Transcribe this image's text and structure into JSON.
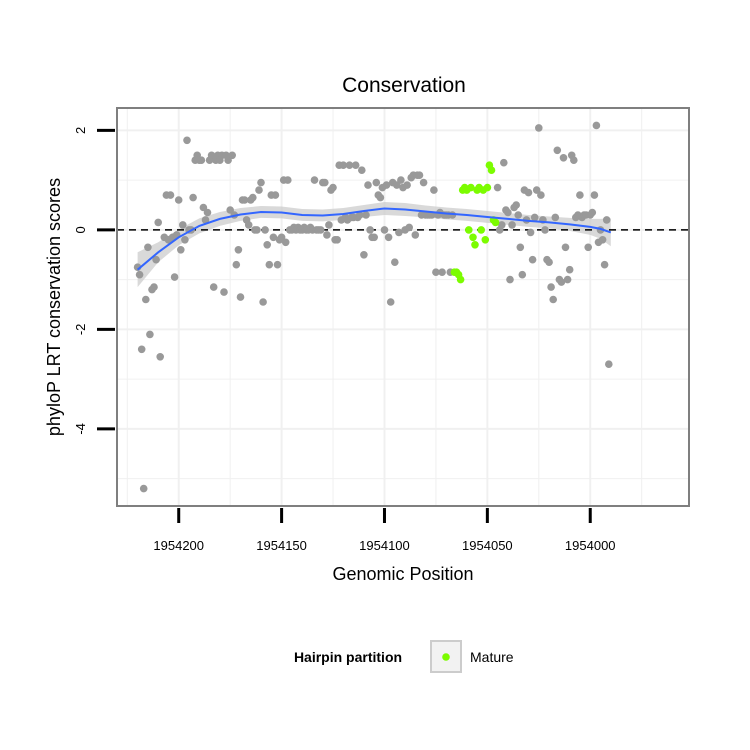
{
  "chart_data": {
    "type": "scatter",
    "title": "Conservation",
    "xlabel": "Genomic Position",
    "ylabel": "phyloP LRT conservation scores",
    "x_reversed": true,
    "xlim": [
      1954230,
      1953952
    ],
    "ylim": [
      -5.55,
      2.45
    ],
    "x_ticks": [
      1954200,
      1954150,
      1954100,
      1954050,
      1954000
    ],
    "x_tick_labels": [
      "1954200",
      "1954150",
      "1954100",
      "1954050",
      "1954000"
    ],
    "y_ticks": [
      2,
      0,
      -2,
      -4
    ],
    "y_tick_labels": [
      "2",
      "0",
      "-2",
      "-4"
    ],
    "reference_line": {
      "y": 0,
      "style": "dashed"
    },
    "grid": true,
    "legend": {
      "title": "Hairpin partition",
      "position": "bottom",
      "entries": [
        {
          "label": "Mature",
          "color": "#7cfc00"
        }
      ]
    },
    "colors": {
      "other": "#999999",
      "mature": "#7cfc00",
      "smooth": "#3366ff",
      "ribbon": "#cccccc",
      "panel_border": "#7f7f7f",
      "grid": "#f0f0f0"
    },
    "series": [
      {
        "group": "other",
        "points": [
          [
            1954220,
            -0.75
          ],
          [
            1954219,
            -0.9
          ],
          [
            1954218,
            -2.4
          ],
          [
            1954217,
            -5.2
          ],
          [
            1954216,
            -1.4
          ],
          [
            1954215,
            -0.35
          ],
          [
            1954214,
            -2.1
          ],
          [
            1954213,
            -1.2
          ],
          [
            1954212,
            -1.15
          ],
          [
            1954211,
            -0.6
          ],
          [
            1954210,
            0.15
          ],
          [
            1954209,
            -2.55
          ],
          [
            1954207,
            -0.15
          ],
          [
            1954206,
            0.7
          ],
          [
            1954205,
            -0.2
          ],
          [
            1954204,
            0.7
          ],
          [
            1954203,
            -0.15
          ],
          [
            1954202,
            -0.95
          ],
          [
            1954201,
            -0.1
          ],
          [
            1954200,
            0.6
          ],
          [
            1954199,
            -0.4
          ],
          [
            1954198,
            0.1
          ],
          [
            1954197,
            -0.2
          ],
          [
            1954196,
            1.8
          ],
          [
            1954195,
            0.0
          ],
          [
            1954194,
            0.0
          ],
          [
            1954193,
            0.65
          ],
          [
            1954192,
            1.4
          ],
          [
            1954191,
            1.5
          ],
          [
            1954190,
            1.4
          ],
          [
            1954189,
            1.4
          ],
          [
            1954188,
            0.45
          ],
          [
            1954187,
            0.2
          ],
          [
            1954186,
            0.35
          ],
          [
            1954185,
            1.4
          ],
          [
            1954184,
            1.5
          ],
          [
            1954183,
            -1.15
          ],
          [
            1954182,
            1.4
          ],
          [
            1954181,
            1.5
          ],
          [
            1954180,
            1.4
          ],
          [
            1954179,
            1.5
          ],
          [
            1954178,
            -1.25
          ],
          [
            1954177,
            1.5
          ],
          [
            1954176,
            1.4
          ],
          [
            1954175,
            0.4
          ],
          [
            1954174,
            1.5
          ],
          [
            1954173,
            0.3
          ],
          [
            1954172,
            -0.7
          ],
          [
            1954171,
            -0.4
          ],
          [
            1954170,
            -1.35
          ],
          [
            1954169,
            0.6
          ],
          [
            1954168,
            0.6
          ],
          [
            1954167,
            0.2
          ],
          [
            1954166,
            0.1
          ],
          [
            1954165,
            0.6
          ],
          [
            1954164,
            0.65
          ],
          [
            1954163,
            0.0
          ],
          [
            1954162,
            0.0
          ],
          [
            1954161,
            0.8
          ],
          [
            1954160,
            0.95
          ],
          [
            1954159,
            -1.45
          ],
          [
            1954158,
            0.0
          ],
          [
            1954157,
            -0.3
          ],
          [
            1954156,
            -0.7
          ],
          [
            1954155,
            0.7
          ],
          [
            1954154,
            -0.15
          ],
          [
            1954153,
            0.7
          ],
          [
            1954152,
            -0.7
          ],
          [
            1954151,
            -0.2
          ],
          [
            1954150,
            -0.15
          ],
          [
            1954149,
            1.0
          ],
          [
            1954148,
            -0.25
          ],
          [
            1954147,
            1.0
          ],
          [
            1954146,
            0.0
          ],
          [
            1954145,
            0.0
          ],
          [
            1954144,
            0.05
          ],
          [
            1954143,
            0.0
          ],
          [
            1954142,
            0.05
          ],
          [
            1954141,
            0.0
          ],
          [
            1954140,
            0.0
          ],
          [
            1954139,
            0.05
          ],
          [
            1954138,
            0.0
          ],
          [
            1954137,
            0.0
          ],
          [
            1954136,
            0.05
          ],
          [
            1954135,
            0.0
          ],
          [
            1954134,
            1.0
          ],
          [
            1954133,
            0.0
          ],
          [
            1954132,
            0.0
          ],
          [
            1954131,
            0.0
          ],
          [
            1954130,
            0.95
          ],
          [
            1954129,
            0.95
          ],
          [
            1954128,
            -0.1
          ],
          [
            1954127,
            0.1
          ],
          [
            1954126,
            0.8
          ],
          [
            1954125,
            0.85
          ],
          [
            1954124,
            -0.2
          ],
          [
            1954123,
            -0.2
          ],
          [
            1954122,
            1.3
          ],
          [
            1954121,
            0.2
          ],
          [
            1954120,
            1.3
          ],
          [
            1954119,
            0.25
          ],
          [
            1954118,
            0.2
          ],
          [
            1954117,
            1.3
          ],
          [
            1954116,
            0.25
          ],
          [
            1954115,
            0.25
          ],
          [
            1954114,
            1.3
          ],
          [
            1954113,
            0.25
          ],
          [
            1954112,
            0.3
          ],
          [
            1954111,
            1.2
          ],
          [
            1954110,
            -0.5
          ],
          [
            1954109,
            0.3
          ],
          [
            1954108,
            0.9
          ],
          [
            1954107,
            0.0
          ],
          [
            1954106,
            -0.15
          ],
          [
            1954105,
            -0.15
          ],
          [
            1954104,
            0.95
          ],
          [
            1954103,
            0.7
          ],
          [
            1954102,
            0.65
          ],
          [
            1954101,
            0.85
          ],
          [
            1954100,
            0.0
          ],
          [
            1954099,
            0.9
          ],
          [
            1954098,
            -0.15
          ],
          [
            1954097,
            -1.45
          ],
          [
            1954096,
            0.95
          ],
          [
            1954095,
            -0.65
          ],
          [
            1954094,
            0.9
          ],
          [
            1954093,
            -0.05
          ],
          [
            1954092,
            1.0
          ],
          [
            1954091,
            0.85
          ],
          [
            1954090,
            0.0
          ],
          [
            1954089,
            0.9
          ],
          [
            1954088,
            0.05
          ],
          [
            1954087,
            1.05
          ],
          [
            1954086,
            1.1
          ],
          [
            1954085,
            -0.1
          ],
          [
            1954084,
            1.1
          ],
          [
            1954083,
            1.1
          ],
          [
            1954082,
            0.3
          ],
          [
            1954081,
            0.95
          ],
          [
            1954080,
            0.3
          ],
          [
            1954079,
            0.3
          ],
          [
            1954078,
            0.3
          ],
          [
            1954077,
            0.3
          ],
          [
            1954076,
            0.8
          ],
          [
            1954075,
            -0.85
          ],
          [
            1954074,
            0.3
          ],
          [
            1954073,
            0.35
          ],
          [
            1954072,
            -0.85
          ],
          [
            1954071,
            0.3
          ],
          [
            1954070,
            0.3
          ],
          [
            1954069,
            0.3
          ],
          [
            1954068,
            -0.85
          ],
          [
            1954067,
            0.3
          ],
          [
            1954045,
            0.85
          ],
          [
            1954044,
            0.0
          ],
          [
            1954043,
            0.1
          ],
          [
            1954042,
            1.35
          ],
          [
            1954041,
            0.4
          ],
          [
            1954040,
            0.35
          ],
          [
            1954039,
            -1.0
          ],
          [
            1954038,
            0.1
          ],
          [
            1954037,
            0.45
          ],
          [
            1954036,
            0.5
          ],
          [
            1954035,
            0.3
          ],
          [
            1954034,
            -0.35
          ],
          [
            1954033,
            -0.9
          ],
          [
            1954032,
            0.8
          ],
          [
            1954031,
            0.2
          ],
          [
            1954030,
            0.75
          ],
          [
            1954029,
            -0.05
          ],
          [
            1954028,
            -0.6
          ],
          [
            1954027,
            0.25
          ],
          [
            1954026,
            0.8
          ],
          [
            1954025,
            2.05
          ],
          [
            1954024,
            0.7
          ],
          [
            1954023,
            0.2
          ],
          [
            1954022,
            0.0
          ],
          [
            1954021,
            -0.6
          ],
          [
            1954020,
            -0.65
          ],
          [
            1954019,
            -1.15
          ],
          [
            1954018,
            -1.4
          ],
          [
            1954017,
            0.25
          ],
          [
            1954016,
            1.6
          ],
          [
            1954015,
            -1.0
          ],
          [
            1954014,
            -1.05
          ],
          [
            1954013,
            1.45
          ],
          [
            1954012,
            -0.35
          ],
          [
            1954011,
            -1.0
          ],
          [
            1954010,
            -0.8
          ],
          [
            1954009,
            1.5
          ],
          [
            1954008,
            1.4
          ],
          [
            1954007,
            0.25
          ],
          [
            1954006,
            0.3
          ],
          [
            1954005,
            0.7
          ],
          [
            1954004,
            0.25
          ],
          [
            1954003,
            0.3
          ],
          [
            1954002,
            0.3
          ],
          [
            1954001,
            -0.35
          ],
          [
            1954000,
            0.3
          ],
          [
            1953999,
            0.35
          ],
          [
            1953998,
            0.7
          ],
          [
            1953997,
            2.1
          ],
          [
            1953996,
            -0.25
          ],
          [
            1953995,
            0.0
          ],
          [
            1953994,
            -0.2
          ],
          [
            1953993,
            -0.7
          ],
          [
            1953992,
            0.2
          ],
          [
            1953991,
            -2.7
          ]
        ]
      },
      {
        "group": "mature",
        "name": "Mature",
        "points": [
          [
            1954066,
            -0.85
          ],
          [
            1954065,
            -0.85
          ],
          [
            1954064,
            -0.9
          ],
          [
            1954063,
            -1.0
          ],
          [
            1954062,
            0.8
          ],
          [
            1954061,
            0.85
          ],
          [
            1954060,
            0.8
          ],
          [
            1954059,
            0.0
          ],
          [
            1954058,
            0.85
          ],
          [
            1954057,
            -0.15
          ],
          [
            1954056,
            -0.3
          ],
          [
            1954055,
            0.8
          ],
          [
            1954054,
            0.85
          ],
          [
            1954053,
            0.0
          ],
          [
            1954052,
            0.8
          ],
          [
            1954051,
            -0.2
          ],
          [
            1954050,
            0.85
          ],
          [
            1954049,
            1.3
          ],
          [
            1954048,
            1.2
          ],
          [
            1954047,
            0.2
          ],
          [
            1954046,
            0.15
          ]
        ]
      }
    ],
    "smooth": {
      "x": [
        1954220,
        1954210,
        1954200,
        1954190,
        1954180,
        1954170,
        1954160,
        1954150,
        1954140,
        1954130,
        1954120,
        1954110,
        1954100,
        1954090,
        1954080,
        1954070,
        1954060,
        1954050,
        1954040,
        1954030,
        1954020,
        1954010,
        1954000,
        1953995,
        1953990
      ],
      "y": [
        -0.8,
        -0.45,
        -0.15,
        0.08,
        0.22,
        0.31,
        0.36,
        0.35,
        0.3,
        0.29,
        0.32,
        0.38,
        0.43,
        0.41,
        0.37,
        0.33,
        0.3,
        0.26,
        0.22,
        0.18,
        0.15,
        0.11,
        0.06,
        0.02,
        -0.05
      ],
      "se": [
        0.35,
        0.2,
        0.16,
        0.15,
        0.14,
        0.13,
        0.12,
        0.12,
        0.12,
        0.12,
        0.12,
        0.12,
        0.13,
        0.13,
        0.12,
        0.12,
        0.12,
        0.12,
        0.12,
        0.12,
        0.12,
        0.13,
        0.16,
        0.2,
        0.28
      ]
    }
  }
}
